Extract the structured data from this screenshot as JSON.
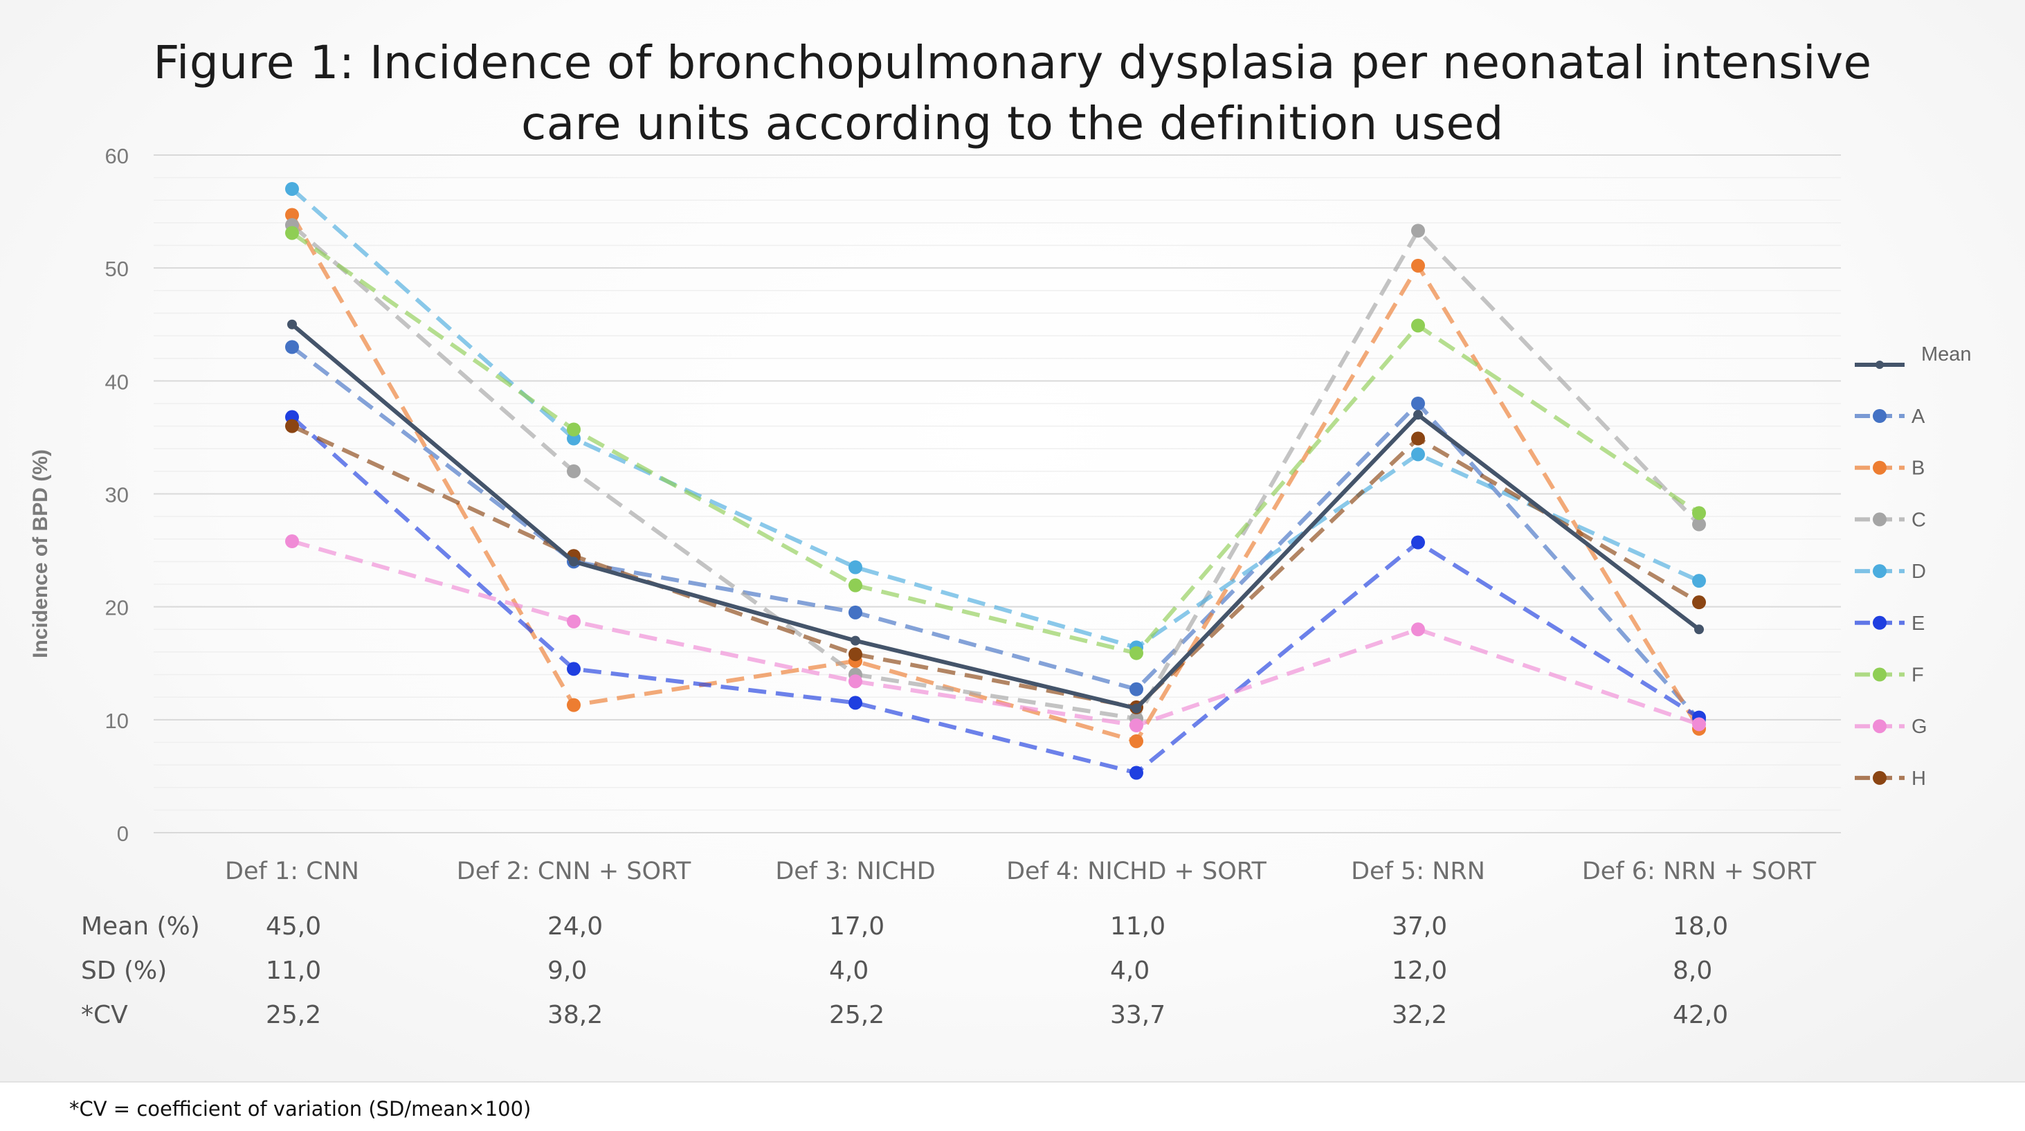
{
  "title_line1": "Figure 1: Incidence of bronchopulmonary dysplasia per neonatal intensive",
  "title_line2": "care units according to the definition used",
  "footnote": "*CV = coefficient of variation (SD/mean×100)",
  "stats": {
    "rows": [
      {
        "label": "Mean (%)",
        "values": [
          "45,0",
          "24,0",
          "17,0",
          "11,0",
          "37,0",
          "18,0"
        ]
      },
      {
        "label": "SD (%)",
        "values": [
          "11,0",
          "9,0",
          "4,0",
          "4,0",
          "12,0",
          "8,0"
        ]
      },
      {
        "label": "*CV",
        "values": [
          "25,2",
          "38,2",
          "25,2",
          "33,7",
          "32,2",
          "42,0"
        ]
      }
    ]
  },
  "chart_data": {
    "type": "line",
    "title": "Figure 1: Incidence of bronchopulmonary dysplasia per neonatal intensive care units according to the definition used",
    "xlabel": "",
    "ylabel": "Incidence of BPD (%)",
    "ylim": [
      0,
      60
    ],
    "yticks": [
      0,
      10,
      20,
      30,
      40,
      50,
      60
    ],
    "grid": true,
    "legend_position": "right",
    "categories": [
      "Def 1: CNN",
      "Def 2: CNN + SORT",
      "Def 3: NICHD",
      "Def 4: NICHD + SORT",
      "Def 5: NRN",
      "Def 6: NRN + SORT"
    ],
    "series": [
      {
        "name": "Mean",
        "color": "#44546a",
        "style": "solid",
        "values": [
          45,
          24,
          17,
          11,
          37,
          18
        ]
      },
      {
        "name": "A",
        "color": "#4472c4",
        "style": "dashed",
        "values": [
          43,
          24,
          19.5,
          12.7,
          38,
          10
        ]
      },
      {
        "name": "B",
        "color": "#ed7d31",
        "style": "dashed",
        "values": [
          54.7,
          11.3,
          15.2,
          8.1,
          50.2,
          9.2
        ]
      },
      {
        "name": "C",
        "color": "#a5a5a5",
        "style": "dashed",
        "values": [
          53.8,
          32,
          14,
          10.1,
          53.3,
          27.3
        ]
      },
      {
        "name": "D",
        "color": "#4bacde",
        "style": "dashed",
        "values": [
          57,
          34.9,
          23.5,
          16.4,
          33.5,
          22.3
        ]
      },
      {
        "name": "E",
        "color": "#1f3fe0",
        "style": "dashed",
        "values": [
          36.8,
          14.5,
          11.5,
          5.3,
          25.7,
          10.2
        ]
      },
      {
        "name": "F",
        "color": "#8fce54",
        "style": "dashed",
        "values": [
          53.1,
          35.7,
          21.9,
          15.9,
          44.9,
          28.3
        ]
      },
      {
        "name": "G",
        "color": "#f08bd6",
        "style": "dashed",
        "values": [
          25.8,
          18.7,
          13.4,
          9.5,
          18,
          9.6
        ]
      },
      {
        "name": "H",
        "color": "#8b4513",
        "style": "dashed",
        "values": [
          36,
          24.5,
          15.8,
          11.1,
          34.9,
          20.4
        ]
      }
    ]
  }
}
